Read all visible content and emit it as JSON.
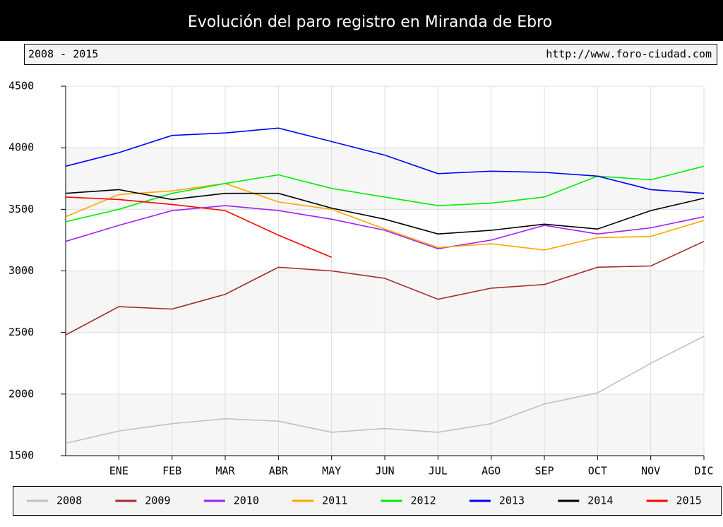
{
  "chart_data": {
    "type": "line",
    "title": "Evolución del paro registro en Miranda de Ebro",
    "subtitle": "2008 - 2015",
    "source": "http://www.foro-ciudad.com",
    "categories": [
      null,
      "ENE",
      "FEB",
      "MAR",
      "ABR",
      "MAY",
      "JUN",
      "JUL",
      "AGO",
      "SEP",
      "OCT",
      "NOV",
      "DIC"
    ],
    "series": [
      {
        "name": "2008",
        "color": "#c0c0c0",
        "values": [
          1600,
          1700,
          1760,
          1800,
          1780,
          1690,
          1720,
          1690,
          1760,
          1920,
          2010,
          2250,
          2470
        ]
      },
      {
        "name": "2009",
        "color": "#a52a2a",
        "values": [
          2480,
          2710,
          2690,
          2810,
          3030,
          3000,
          2940,
          2770,
          2860,
          2890,
          3030,
          3040,
          3240
        ]
      },
      {
        "name": "2010",
        "color": "#a020f0",
        "values": [
          3240,
          3370,
          3490,
          3530,
          3490,
          3420,
          3330,
          3180,
          3250,
          3370,
          3300,
          3350,
          3440
        ]
      },
      {
        "name": "2011",
        "color": "#ffa500",
        "values": [
          3440,
          3620,
          3650,
          3710,
          3560,
          3500,
          3340,
          3190,
          3220,
          3170,
          3270,
          3280,
          3410
        ]
      },
      {
        "name": "2012",
        "color": "#00ee00",
        "values": [
          3400,
          3500,
          3630,
          3710,
          3780,
          3670,
          3600,
          3530,
          3550,
          3600,
          3770,
          3740,
          3850
        ]
      },
      {
        "name": "2013",
        "color": "#0000ff",
        "values": [
          3850,
          3960,
          4100,
          4120,
          4160,
          4050,
          3940,
          3790,
          3810,
          3800,
          3770,
          3660,
          3630
        ]
      },
      {
        "name": "2014",
        "color": "#000000",
        "values": [
          3630,
          3660,
          3580,
          3630,
          3630,
          3510,
          3420,
          3300,
          3330,
          3380,
          3340,
          3490,
          3590
        ]
      },
      {
        "name": "2015",
        "color": "#ff0000",
        "values": [
          3600,
          3580,
          3540,
          3490,
          3290,
          3110,
          null,
          null,
          null,
          null,
          null,
          null,
          null
        ]
      }
    ],
    "ylim": [
      1500,
      4500
    ],
    "yticks": [
      1500,
      2000,
      2500,
      3000,
      3500,
      4000,
      4500
    ],
    "grid": true
  }
}
